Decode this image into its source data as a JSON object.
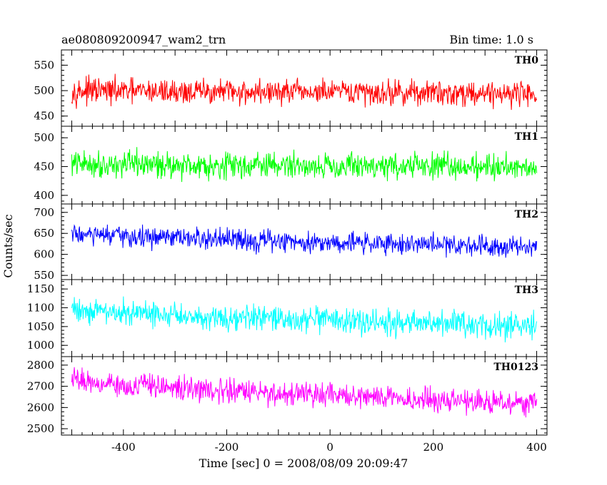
{
  "chart_data": {
    "type": "line",
    "title": "ae080809200947_wam2_trn",
    "subtitle": "Bin time: 1.0 s",
    "xlabel": "Time [sec] 0 = 2008/08/09 20:09:47",
    "ylabel": "Counts/sec",
    "xlim": [
      -520,
      420
    ],
    "x_ticks": [
      -400,
      -200,
      0,
      200,
      400
    ],
    "x_start": -500,
    "x_end": 400,
    "x_step": 1,
    "grid": false,
    "panels": [
      {
        "name": "TH0",
        "color": "#ff0000",
        "ylim": [
          430,
          580
        ],
        "y_ticks": [
          450,
          500,
          550
        ],
        "start_level": 500,
        "end_level": 495,
        "noise": 26
      },
      {
        "name": "TH1",
        "color": "#00ff00",
        "ylim": [
          385,
          520
        ],
        "y_ticks": [
          400,
          450,
          500
        ],
        "start_level": 455,
        "end_level": 450,
        "noise": 24
      },
      {
        "name": "TH2",
        "color": "#0000ff",
        "ylim": [
          540,
          720
        ],
        "y_ticks": [
          550,
          600,
          650,
          700
        ],
        "start_level": 650,
        "end_level": 620,
        "noise": 27
      },
      {
        "name": "TH3",
        "color": "#00ffff",
        "ylim": [
          970,
          1175
        ],
        "y_ticks": [
          1000,
          1050,
          1100,
          1150
        ],
        "start_level": 1100,
        "end_level": 1050,
        "noise": 36
      },
      {
        "name": "TH0123",
        "color": "#ff00ff",
        "ylim": [
          2470,
          2840
        ],
        "y_ticks": [
          2500,
          2600,
          2700,
          2800
        ],
        "start_level": 2740,
        "end_level": 2620,
        "noise": 58
      }
    ]
  }
}
